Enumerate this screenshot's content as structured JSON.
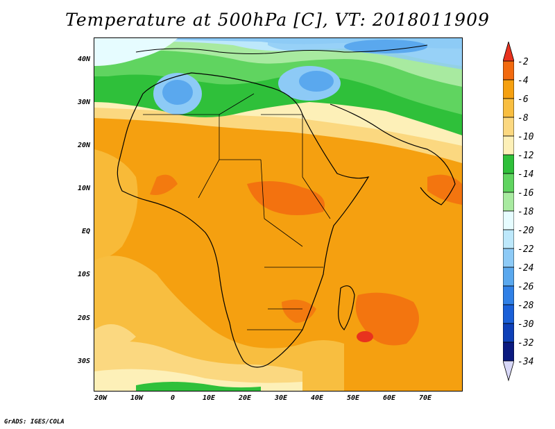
{
  "title": "Temperature at 500hPa [C], VT: 2018011909",
  "credit": "GrADS: IGES/COLA",
  "lat_labels": [
    "40N",
    "30N",
    "20N",
    "10N",
    "EQ",
    "10S",
    "20S",
    "30S"
  ],
  "lon_labels": [
    "20W",
    "10W",
    "0",
    "10E",
    "20E",
    "30E",
    "40E",
    "50E",
    "60E",
    "70E"
  ],
  "colorbar": {
    "labels": [
      "-2",
      "-4",
      "-6",
      "-8",
      "-10",
      "-12",
      "-14",
      "-16",
      "-18",
      "-20",
      "-22",
      "-24",
      "-26",
      "-28",
      "-30",
      "-32",
      "-34"
    ],
    "colors": [
      "#e8321e",
      "#f26a0f",
      "#f5a010",
      "#f8be40",
      "#fbd880",
      "#fdf0b8",
      "#2fc03a",
      "#60d460",
      "#a8eaa0",
      "#e6fcff",
      "#bde8fb",
      "#8dcaf6",
      "#5aa8ee",
      "#3080e6",
      "#1a60d8",
      "#0e40b8",
      "#0a1a80",
      "#d8d8f8"
    ]
  },
  "map": {
    "colors": {
      "cold_blue": "#5aa8ee",
      "light_blue": "#bde8fb",
      "pale_cyan": "#e6fcff",
      "light_green": "#a8eaa0",
      "green": "#2fc03a",
      "pale_yellow": "#fdf0b8",
      "yellow": "#fbd880",
      "light_orange": "#f8be40",
      "orange": "#f5a010",
      "dark_orange": "#f26a0f"
    }
  }
}
